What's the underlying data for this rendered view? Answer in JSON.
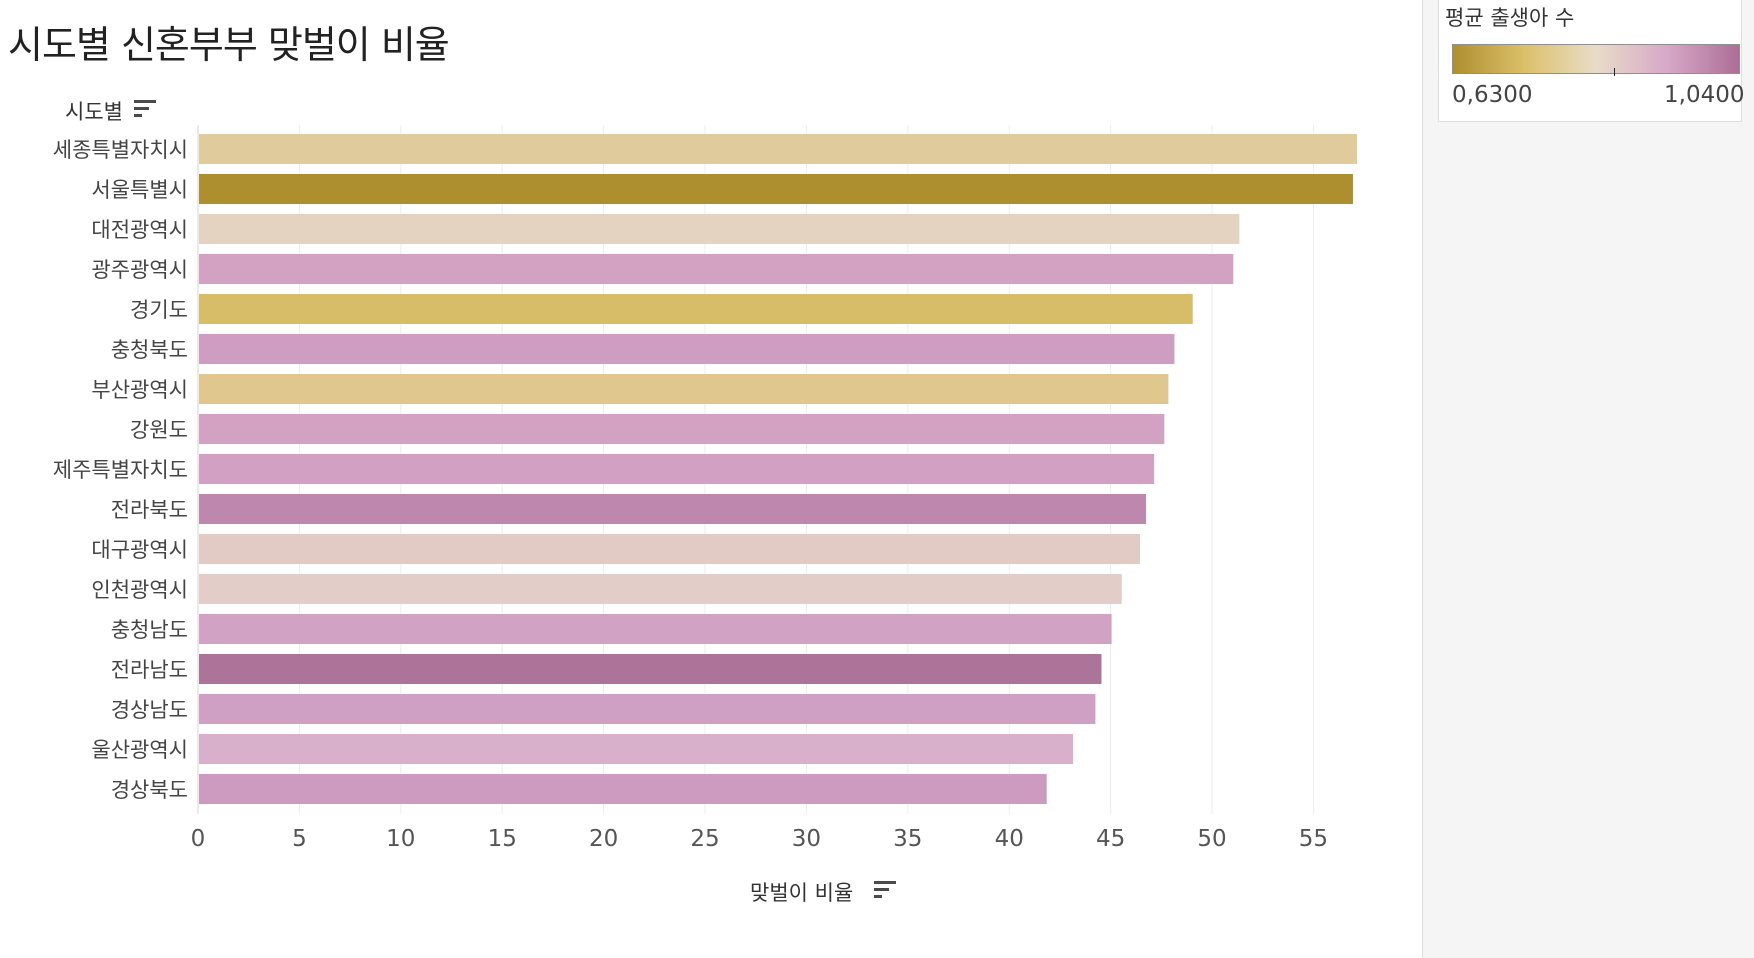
{
  "chart_data": {
    "type": "bar",
    "orientation": "horizontal",
    "title": "시도별 신혼부부 맞벌이 비율",
    "category_axis_label": "시도별",
    "value_axis_label": "맞벌이 비율",
    "categories": [
      "세종특별자치시",
      "서울특별시",
      "대전광역시",
      "광주광역시",
      "경기도",
      "충청북도",
      "부산광역시",
      "강원도",
      "제주특별자치도",
      "전라북도",
      "대구광역시",
      "인천광역시",
      "충청남도",
      "전라남도",
      "경상남도",
      "울산광역시",
      "경상북도"
    ],
    "values": [
      57.1,
      56.9,
      51.3,
      51.0,
      49.0,
      48.1,
      47.8,
      47.6,
      47.1,
      46.7,
      46.4,
      45.5,
      45.0,
      44.5,
      44.2,
      43.1,
      41.8
    ],
    "color_values": [
      0.75,
      0.63,
      0.8,
      0.96,
      0.7,
      0.98,
      0.74,
      0.96,
      0.96,
      1.0,
      0.82,
      0.83,
      0.98,
      1.04,
      0.98,
      0.93,
      0.99
    ],
    "xlim": [
      0,
      60
    ],
    "x_ticks": [
      "0",
      "5",
      "10",
      "15",
      "20",
      "25",
      "30",
      "35",
      "40",
      "45",
      "50",
      "55"
    ],
    "grid": true,
    "legend": {
      "title": "평균 출생아 수",
      "type": "continuous-color",
      "min_label": "0,6300",
      "max_label": "1,0400",
      "min_value": 0.63,
      "max_value": 1.04,
      "marker_value": 0.86,
      "placement": "top-right",
      "colors": [
        "#ad8f2e",
        "#dcc06a",
        "#e8dcc8",
        "#d7a8c8",
        "#ac6e96"
      ]
    },
    "bar_colors": [
      "#e0cb9c",
      "#ad8f2f",
      "#e3d3c0",
      "#d3a1c1",
      "#d7bd68",
      "#cf9dc1",
      "#dfc78e",
      "#d3a2c2",
      "#d2a0c2",
      "#be87ad",
      "#e2cbc4",
      "#e2cdc9",
      "#d2a2c4",
      "#ab7498",
      "#cfa0c3",
      "#d9b0cb",
      "#cd9ac0"
    ]
  }
}
